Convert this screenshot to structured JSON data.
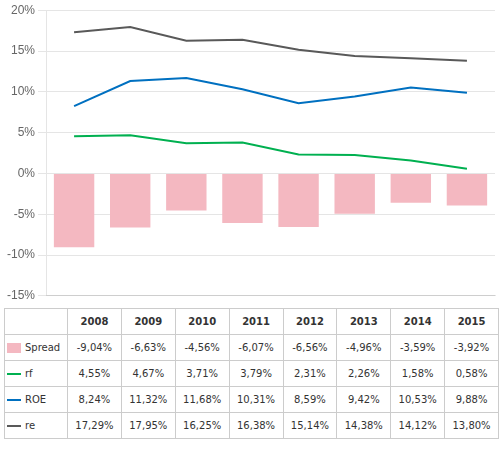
{
  "chart_data": {
    "type": "bar",
    "categories": [
      "2008",
      "2009",
      "2010",
      "2011",
      "2012",
      "2013",
      "2014",
      "2015"
    ],
    "series": [
      {
        "name": "Spread",
        "type": "bar",
        "color": "#f4b8c1",
        "values": [
          -9.04,
          -6.63,
          -4.56,
          -6.07,
          -6.56,
          -4.96,
          -3.59,
          -3.92
        ],
        "value_labels": [
          "-9,04%",
          "-6,63%",
          "-4,56%",
          "-6,07%",
          "-6,56%",
          "-4,96%",
          "-3,59%",
          "-3,92%"
        ]
      },
      {
        "name": "rf",
        "type": "line",
        "color": "#00b050",
        "values": [
          4.55,
          4.67,
          3.71,
          3.79,
          2.31,
          2.26,
          1.58,
          0.58
        ],
        "value_labels": [
          "4,55%",
          "4,67%",
          "3,71%",
          "3,79%",
          "2,31%",
          "2,26%",
          "1,58%",
          "0,58%"
        ]
      },
      {
        "name": "ROE",
        "type": "line",
        "color": "#0070c0",
        "values": [
          8.24,
          11.32,
          11.68,
          10.31,
          8.59,
          9.42,
          10.53,
          9.88
        ],
        "value_labels": [
          "8,24%",
          "11,32%",
          "11,68%",
          "10,31%",
          "8,59%",
          "9,42%",
          "10,53%",
          "9,88%"
        ]
      },
      {
        "name": "re",
        "type": "line",
        "color": "#595959",
        "values": [
          17.29,
          17.95,
          16.25,
          16.38,
          15.14,
          14.38,
          14.12,
          13.8
        ],
        "value_labels": [
          "17,29%",
          "17,95%",
          "16,25%",
          "16,38%",
          "15,14%",
          "14,38%",
          "14,12%",
          "13,80%"
        ]
      }
    ],
    "ylim": [
      -15,
      20
    ],
    "yticks": [
      {
        "value": -15,
        "label": "-15%"
      },
      {
        "value": -10,
        "label": "-10%"
      },
      {
        "value": -5,
        "label": "-5%"
      },
      {
        "value": 0,
        "label": "0%"
      },
      {
        "value": 5,
        "label": "5%"
      },
      {
        "value": 10,
        "label": "10%"
      },
      {
        "value": 15,
        "label": "15%"
      },
      {
        "value": 20,
        "label": "20%"
      }
    ],
    "grid": true,
    "tick_labels": "y"
  }
}
